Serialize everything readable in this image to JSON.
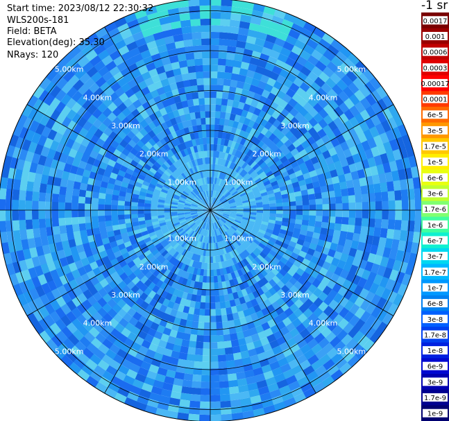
{
  "info": {
    "start_time": "Start time: 2023/08/12 22:30:32",
    "instrument": "WLS200s-181",
    "field": "Field: BETA",
    "elevation": "Elevation(deg): 35.30",
    "nrays": "NRays: 120"
  },
  "colorbar": {
    "title": "-1 sr",
    "ticks": [
      "0.0017",
      "0.001",
      "0.0006",
      "0.0003",
      "0.00017",
      "0.0001",
      "6e-5",
      "3e-5",
      "1.7e-5",
      "1e-5",
      "6e-6",
      "3e-6",
      "1.7e-6",
      "1e-6",
      "6e-7",
      "3e-7",
      "1.7e-7",
      "1e-7",
      "6e-8",
      "3e-8",
      "1.7e-8",
      "1e-8",
      "6e-9",
      "3e-9",
      "1.7e-9",
      "1e-9"
    ],
    "colors": [
      "#7a0000",
      "#990000",
      "#c00000",
      "#e00000",
      "#ff0000",
      "#ff3a00",
      "#ff6a00",
      "#ff9800",
      "#ffc800",
      "#ffee00",
      "#e8ff10",
      "#c0ff30",
      "#80ff70",
      "#40ffa0",
      "#10f0d0",
      "#00d8f0",
      "#00b8ff",
      "#0098ff",
      "#0080f0",
      "#0060ff",
      "#0040f0",
      "#0020e0",
      "#0008d0",
      "#0000b0",
      "#000090",
      "#000070"
    ]
  },
  "chart_data": {
    "type": "heatmap",
    "projection": "polar",
    "title": "",
    "nrays": 120,
    "radial_unit": "km",
    "range_rings": [
      1.0,
      2.0,
      3.0,
      4.0,
      5.0
    ],
    "range_labels": [
      "1.00km",
      "2.00km",
      "3.00km",
      "4.00km",
      "5.00km"
    ],
    "max_range_km": 5.3,
    "azimuth_lines_deg": [
      0,
      30,
      60,
      90,
      120,
      150,
      180,
      210,
      240,
      270,
      300,
      330
    ],
    "color_scale": "log",
    "dominant_value_range": [
      "3e-8",
      "1e-7"
    ]
  }
}
